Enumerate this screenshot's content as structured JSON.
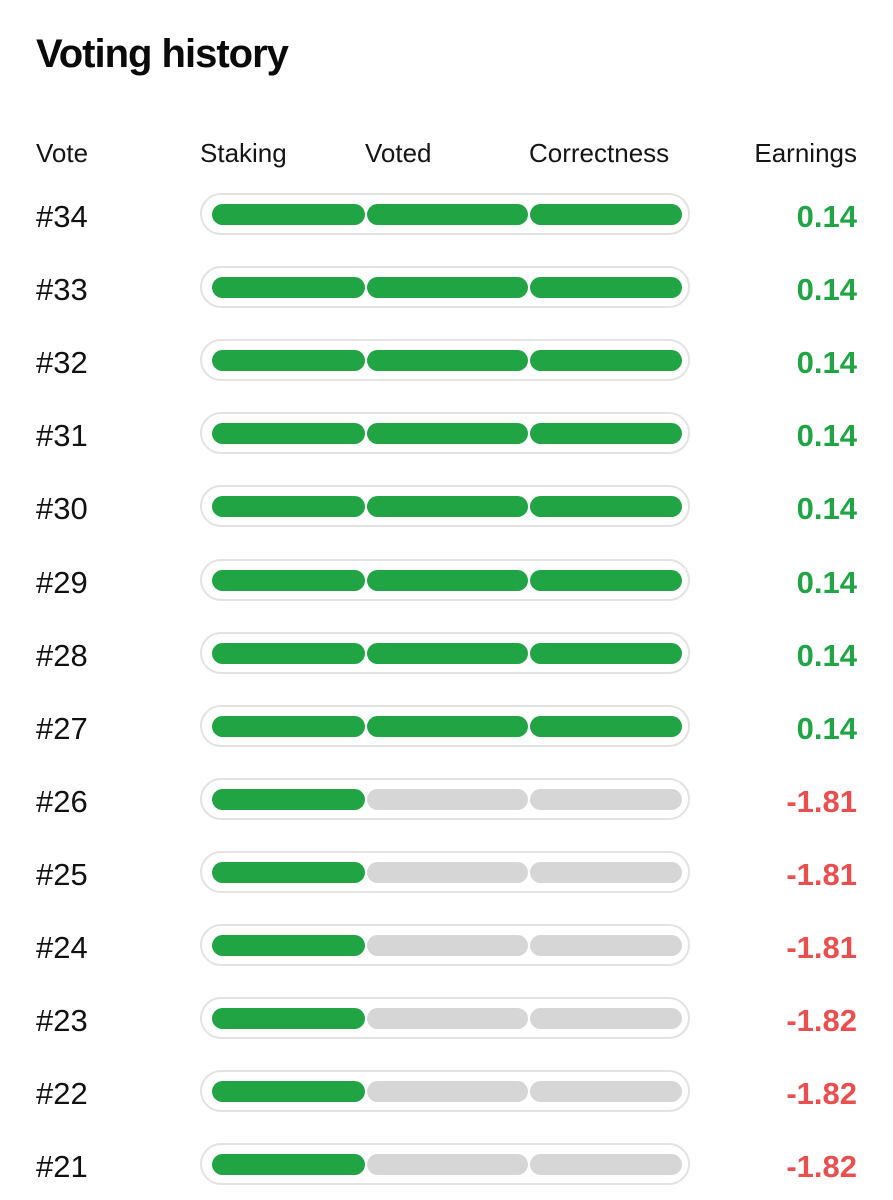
{
  "title": "Voting history",
  "columns": {
    "vote": "Vote",
    "staking": "Staking",
    "voted": "Voted",
    "correctness": "Correctness",
    "earnings": "Earnings"
  },
  "colors": {
    "active": "#21a444",
    "inactive": "#d6d6d6",
    "positive": "#21a444",
    "negative": "#ea4f4f"
  },
  "votes": [
    {
      "id": "#34",
      "staking": true,
      "voted": true,
      "correctness": true,
      "earnings": "0.14"
    },
    {
      "id": "#33",
      "staking": true,
      "voted": true,
      "correctness": true,
      "earnings": "0.14"
    },
    {
      "id": "#32",
      "staking": true,
      "voted": true,
      "correctness": true,
      "earnings": "0.14"
    },
    {
      "id": "#31",
      "staking": true,
      "voted": true,
      "correctness": true,
      "earnings": "0.14"
    },
    {
      "id": "#30",
      "staking": true,
      "voted": true,
      "correctness": true,
      "earnings": "0.14"
    },
    {
      "id": "#29",
      "staking": true,
      "voted": true,
      "correctness": true,
      "earnings": "0.14"
    },
    {
      "id": "#28",
      "staking": true,
      "voted": true,
      "correctness": true,
      "earnings": "0.14"
    },
    {
      "id": "#27",
      "staking": true,
      "voted": true,
      "correctness": true,
      "earnings": "0.14"
    },
    {
      "id": "#26",
      "staking": true,
      "voted": false,
      "correctness": false,
      "earnings": "-1.81"
    },
    {
      "id": "#25",
      "staking": true,
      "voted": false,
      "correctness": false,
      "earnings": "-1.81"
    },
    {
      "id": "#24",
      "staking": true,
      "voted": false,
      "correctness": false,
      "earnings": "-1.81"
    },
    {
      "id": "#23",
      "staking": true,
      "voted": false,
      "correctness": false,
      "earnings": "-1.82"
    },
    {
      "id": "#22",
      "staking": true,
      "voted": false,
      "correctness": false,
      "earnings": "-1.82"
    },
    {
      "id": "#21",
      "staking": true,
      "voted": false,
      "correctness": false,
      "earnings": "-1.82"
    }
  ]
}
